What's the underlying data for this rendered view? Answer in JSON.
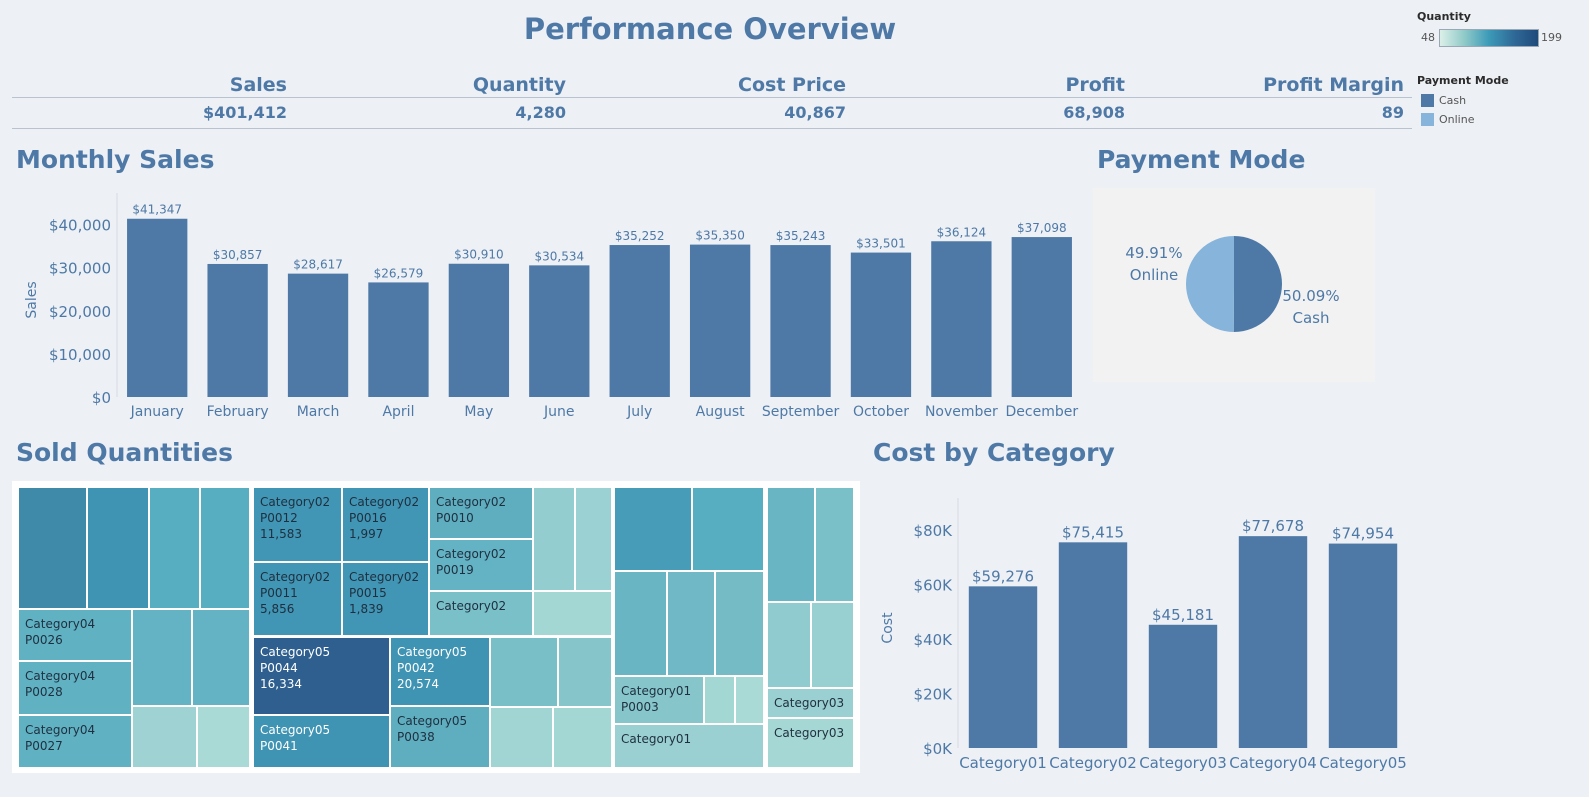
{
  "header": {
    "title": "Performance Overview"
  },
  "kpis": [
    {
      "label": "Sales",
      "value": "$401,412"
    },
    {
      "label": "Quantity",
      "value": "4,280"
    },
    {
      "label": "Cost Price",
      "value": "40,867"
    },
    {
      "label": "Profit",
      "value": "68,908"
    },
    {
      "label": "Profit Margin",
      "value": "89"
    }
  ],
  "legend": {
    "quantity_title": "Quantity",
    "quantity_min": "48",
    "quantity_max": "199",
    "payment_title": "Payment Mode",
    "payment_items": [
      {
        "label": "Cash",
        "color": "#4e79a7"
      },
      {
        "label": "Online",
        "color": "#86b4da"
      }
    ]
  },
  "sections": {
    "monthly_sales": "Monthly Sales",
    "payment_mode": "Payment Mode",
    "sold_quantities": "Sold Quantities",
    "cost_by_category": "Cost by Category"
  },
  "colors": {
    "bar": "#4e79a7",
    "cash": "#4e79a7",
    "online": "#86b4da",
    "text": "#4e79a7"
  },
  "chart_data": [
    {
      "type": "bar",
      "title": "Monthly Sales",
      "ylabel": "Sales",
      "categories": [
        "January",
        "February",
        "March",
        "April",
        "May",
        "June",
        "July",
        "August",
        "September",
        "October",
        "November",
        "December"
      ],
      "values": [
        41347,
        30857,
        28617,
        26579,
        30910,
        30534,
        35252,
        35350,
        35243,
        33501,
        36124,
        37098
      ],
      "data_labels": [
        "$41,347",
        "$30,857",
        "$28,617",
        "$26,579",
        "$30,910",
        "$30,534",
        "$35,252",
        "$35,350",
        "$35,243",
        "$33,501",
        "$36,124",
        "$37,098"
      ],
      "ylim": [
        0,
        45000
      ],
      "yticks": [
        0,
        10000,
        20000,
        30000,
        40000
      ],
      "ytick_labels": [
        "$0",
        "$10,000",
        "$20,000",
        "$30,000",
        "$40,000"
      ]
    },
    {
      "type": "pie",
      "title": "Payment Mode",
      "slices": [
        {
          "name": "Cash",
          "value": 50.09,
          "label_pct": "50.09%",
          "color": "#4e79a7"
        },
        {
          "name": "Online",
          "value": 49.91,
          "label_pct": "49.91%",
          "color": "#86b4da"
        }
      ]
    },
    {
      "type": "heatmap",
      "title": "Sold Quantities",
      "labeled_tiles": [
        {
          "category": "Category02",
          "product": "P0012",
          "value": "11,583"
        },
        {
          "category": "Category02",
          "product": "P0016",
          "value": "1,997"
        },
        {
          "category": "Category02",
          "product": "P0010",
          "value": ""
        },
        {
          "category": "Category02",
          "product": "P0019",
          "value": ""
        },
        {
          "category": "Category02",
          "product": "",
          "value": ""
        },
        {
          "category": "Category02",
          "product": "P0011",
          "value": "5,856"
        },
        {
          "category": "Category02",
          "product": "P0015",
          "value": "1,839"
        },
        {
          "category": "Category04",
          "product": "P0026",
          "value": ""
        },
        {
          "category": "Category04",
          "product": "P0028",
          "value": ""
        },
        {
          "category": "Category04",
          "product": "P0027",
          "value": ""
        },
        {
          "category": "Category05",
          "product": "P0044",
          "value": "16,334"
        },
        {
          "category": "Category05",
          "product": "P0042",
          "value": "20,574"
        },
        {
          "category": "Category05",
          "product": "P0041",
          "value": ""
        },
        {
          "category": "Category05",
          "product": "P0038",
          "value": ""
        },
        {
          "category": "Category01",
          "product": "P0003",
          "value": ""
        },
        {
          "category": "Category01",
          "product": "",
          "value": ""
        },
        {
          "category": "Category03",
          "product": "",
          "value": ""
        },
        {
          "category": "Category03",
          "product": "",
          "value": ""
        }
      ]
    },
    {
      "type": "bar",
      "title": "Cost by Category",
      "ylabel": "Cost",
      "categories": [
        "Category01",
        "Category02",
        "Category03",
        "Category04",
        "Category05"
      ],
      "values": [
        59276,
        75415,
        45181,
        77678,
        74954
      ],
      "data_labels": [
        "$59,276",
        "$75,415",
        "$45,181",
        "$77,678",
        "$74,954"
      ],
      "ylim": [
        0,
        88000
      ],
      "yticks": [
        0,
        20000,
        40000,
        60000,
        80000
      ],
      "ytick_labels": [
        "$0K",
        "$20K",
        "$40K",
        "$60K",
        "$80K"
      ]
    }
  ]
}
